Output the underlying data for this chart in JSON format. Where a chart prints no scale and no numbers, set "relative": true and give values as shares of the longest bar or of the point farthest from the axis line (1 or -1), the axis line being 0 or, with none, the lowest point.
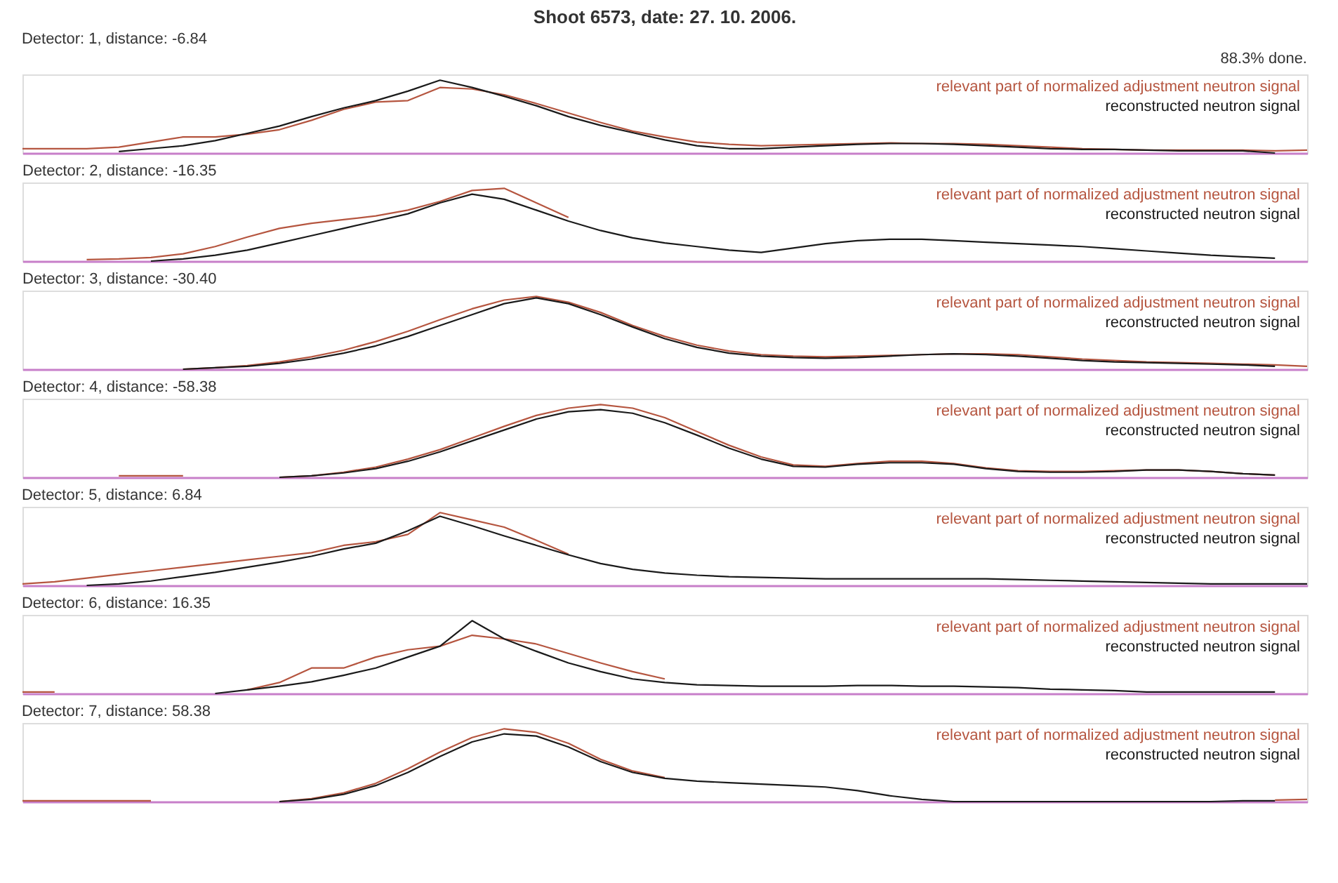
{
  "chart_data": [
    {
      "type": "line",
      "title": "Shoot 6573, date: 27. 10. 2006.",
      "subtitle": "Detector:  1, distance:  -6.84",
      "annotations": [
        "88.3% done."
      ],
      "relative": true,
      "legend": "top right",
      "grid": false,
      "categories": [
        null,
        null,
        null,
        null,
        null,
        null,
        null,
        null,
        null,
        null,
        null,
        null,
        null,
        null,
        null,
        null,
        null,
        null,
        null,
        null,
        null,
        null,
        null,
        null,
        null,
        null,
        null,
        null,
        null,
        null,
        null,
        null,
        null,
        null,
        null,
        null,
        null,
        null,
        null,
        null,
        null
      ],
      "series": [
        {
          "name": "relevant part of normalized adjustment neutron signal",
          "color": "#b5553f",
          "values": [
            0.06,
            0.06,
            0.06,
            0.08,
            0.15,
            0.22,
            0.22,
            0.26,
            0.32,
            0.45,
            0.6,
            0.7,
            0.72,
            0.9,
            0.88,
            0.8,
            0.68,
            0.55,
            0.42,
            0.3,
            0.22,
            0.15,
            0.12,
            0.1,
            0.11,
            0.12,
            0.13,
            0.14,
            0.13,
            0.13,
            0.12,
            0.1,
            0.08,
            0.06,
            0.05,
            0.04,
            0.04,
            0.04,
            0.04,
            0.03,
            0.04
          ]
        },
        {
          "name": "reconstructed neutron signal",
          "color": "#1a1a1a",
          "values": [
            null,
            null,
            null,
            0.02,
            0.06,
            0.1,
            0.17,
            0.27,
            0.37,
            0.5,
            0.62,
            0.72,
            0.85,
            1.0,
            0.9,
            0.78,
            0.65,
            0.5,
            0.38,
            0.28,
            0.18,
            0.1,
            0.06,
            0.06,
            0.08,
            0.1,
            0.12,
            0.13,
            0.13,
            0.12,
            0.1,
            0.08,
            0.06,
            0.05,
            0.05,
            0.04,
            0.03,
            0.03,
            0.03,
            0.0,
            null
          ]
        }
      ]
    },
    {
      "type": "line",
      "title": "Detector:  2, distance: -16.35",
      "relative": true,
      "legend": "top right",
      "grid": false,
      "categories": [
        null,
        null,
        null,
        null,
        null,
        null,
        null,
        null,
        null,
        null,
        null,
        null,
        null,
        null,
        null,
        null,
        null,
        null,
        null,
        null,
        null,
        null,
        null,
        null,
        null,
        null,
        null,
        null,
        null,
        null,
        null,
        null,
        null,
        null,
        null,
        null,
        null,
        null,
        null,
        null,
        null
      ],
      "series": [
        {
          "name": "relevant part of normalized adjustment neutron signal",
          "color": "#b5553f",
          "values": [
            null,
            null,
            0.02,
            0.03,
            0.05,
            0.1,
            0.2,
            0.33,
            0.45,
            0.52,
            0.57,
            0.62,
            0.7,
            0.82,
            0.97,
            1.0,
            0.8,
            0.6,
            null,
            null,
            null,
            null,
            null,
            null,
            null,
            null,
            null,
            null,
            null,
            null,
            null,
            null,
            null,
            null,
            null,
            null,
            null,
            null,
            null,
            null,
            null
          ]
        },
        {
          "name": "reconstructed neutron signal",
          "color": "#1a1a1a",
          "values": [
            null,
            null,
            null,
            null,
            0.0,
            0.03,
            0.08,
            0.15,
            0.25,
            0.35,
            0.45,
            0.55,
            0.65,
            0.8,
            0.92,
            0.85,
            0.7,
            0.55,
            0.42,
            0.32,
            0.25,
            0.2,
            0.15,
            0.12,
            0.18,
            0.24,
            0.28,
            0.3,
            0.3,
            0.28,
            0.26,
            0.24,
            0.22,
            0.2,
            0.17,
            0.14,
            0.11,
            0.08,
            0.06,
            0.04,
            null
          ]
        }
      ]
    },
    {
      "type": "line",
      "title": "Detector:  3, distance: -30.40",
      "relative": true,
      "legend": "top right",
      "grid": false,
      "categories": [
        null,
        null,
        null,
        null,
        null,
        null,
        null,
        null,
        null,
        null,
        null,
        null,
        null,
        null,
        null,
        null,
        null,
        null,
        null,
        null,
        null,
        null,
        null,
        null,
        null,
        null,
        null,
        null,
        null,
        null,
        null,
        null,
        null,
        null,
        null,
        null,
        null,
        null,
        null,
        null,
        null
      ],
      "series": [
        {
          "name": "relevant part of normalized adjustment neutron signal",
          "color": "#b5553f",
          "values": [
            null,
            null,
            null,
            null,
            null,
            0.0,
            0.02,
            0.05,
            0.1,
            0.17,
            0.26,
            0.38,
            0.52,
            0.68,
            0.83,
            0.95,
            1.0,
            0.92,
            0.78,
            0.6,
            0.45,
            0.33,
            0.25,
            0.2,
            0.18,
            0.17,
            0.18,
            0.19,
            0.2,
            0.21,
            0.21,
            0.2,
            0.17,
            0.14,
            0.12,
            0.1,
            0.09,
            0.08,
            0.07,
            0.06,
            0.04
          ]
        },
        {
          "name": "reconstructed neutron signal",
          "color": "#1a1a1a",
          "values": [
            null,
            null,
            null,
            null,
            null,
            0.0,
            0.02,
            0.04,
            0.08,
            0.14,
            0.22,
            0.32,
            0.45,
            0.6,
            0.75,
            0.9,
            0.98,
            0.9,
            0.75,
            0.58,
            0.42,
            0.3,
            0.22,
            0.18,
            0.16,
            0.15,
            0.16,
            0.18,
            0.2,
            0.21,
            0.2,
            0.18,
            0.15,
            0.12,
            0.1,
            0.09,
            0.08,
            0.07,
            0.06,
            0.04,
            null
          ]
        }
      ]
    },
    {
      "type": "line",
      "title": "Detector:  4, distance: -58.38",
      "relative": true,
      "legend": "top right",
      "grid": false,
      "categories": [
        null,
        null,
        null,
        null,
        null,
        null,
        null,
        null,
        null,
        null,
        null,
        null,
        null,
        null,
        null,
        null,
        null,
        null,
        null,
        null,
        null,
        null,
        null,
        null,
        null,
        null,
        null,
        null,
        null,
        null,
        null,
        null,
        null,
        null,
        null,
        null,
        null,
        null,
        null,
        null,
        null
      ],
      "series": [
        {
          "name": "relevant part of normalized adjustment neutron signal",
          "color": "#b5553f",
          "values": [
            null,
            null,
            null,
            0.02,
            0.02,
            0.02,
            null,
            null,
            0.0,
            0.02,
            0.07,
            0.14,
            0.25,
            0.38,
            0.54,
            0.7,
            0.85,
            0.95,
            1.0,
            0.95,
            0.82,
            0.63,
            0.44,
            0.28,
            0.17,
            0.15,
            0.19,
            0.22,
            0.22,
            0.19,
            0.13,
            0.09,
            0.08,
            0.08,
            0.09,
            0.1,
            0.1,
            0.08,
            0.05,
            0.03,
            null
          ]
        },
        {
          "name": "reconstructed neutron signal",
          "color": "#1a1a1a",
          "values": [
            null,
            null,
            null,
            null,
            null,
            null,
            null,
            null,
            0.0,
            0.02,
            0.06,
            0.12,
            0.22,
            0.35,
            0.5,
            0.65,
            0.8,
            0.9,
            0.93,
            0.88,
            0.75,
            0.58,
            0.4,
            0.25,
            0.15,
            0.14,
            0.18,
            0.2,
            0.2,
            0.18,
            0.12,
            0.08,
            0.07,
            0.07,
            0.08,
            0.1,
            0.1,
            0.08,
            0.05,
            0.03,
            null
          ]
        }
      ]
    },
    {
      "type": "line",
      "title": "Detector:  5, distance:  6.84",
      "relative": true,
      "legend": "top right",
      "grid": false,
      "categories": [
        null,
        null,
        null,
        null,
        null,
        null,
        null,
        null,
        null,
        null,
        null,
        null,
        null,
        null,
        null,
        null,
        null,
        null,
        null,
        null,
        null,
        null,
        null,
        null,
        null,
        null,
        null,
        null,
        null,
        null,
        null,
        null,
        null,
        null,
        null,
        null,
        null,
        null,
        null,
        null,
        null
      ],
      "series": [
        {
          "name": "relevant part of normalized adjustment neutron signal",
          "color": "#b5553f",
          "values": [
            0.02,
            0.05,
            0.1,
            0.15,
            0.2,
            0.25,
            0.3,
            0.35,
            0.4,
            0.45,
            0.55,
            0.6,
            0.7,
            1.0,
            0.9,
            0.8,
            0.62,
            0.43,
            null,
            null,
            null,
            null,
            null,
            null,
            null,
            null,
            null,
            null,
            null,
            null,
            null,
            null,
            null,
            null,
            null,
            null,
            null,
            null,
            null,
            null,
            null
          ]
        },
        {
          "name": "reconstructed neutron signal",
          "color": "#1a1a1a",
          "values": [
            null,
            null,
            0.0,
            0.02,
            0.06,
            0.12,
            0.18,
            0.25,
            0.32,
            0.4,
            0.5,
            0.58,
            0.75,
            0.95,
            0.82,
            0.68,
            0.55,
            0.42,
            0.3,
            0.22,
            0.17,
            0.14,
            0.12,
            0.11,
            0.1,
            0.09,
            0.09,
            0.09,
            0.09,
            0.09,
            0.09,
            0.08,
            0.07,
            0.06,
            0.05,
            0.04,
            0.03,
            0.02,
            0.02,
            0.02,
            0.02
          ]
        }
      ]
    },
    {
      "type": "line",
      "title": "Detector:  6, distance:  16.35",
      "relative": true,
      "legend": "top right",
      "grid": false,
      "categories": [
        null,
        null,
        null,
        null,
        null,
        null,
        null,
        null,
        null,
        null,
        null,
        null,
        null,
        null,
        null,
        null,
        null,
        null,
        null,
        null,
        null,
        null,
        null,
        null,
        null,
        null,
        null,
        null,
        null,
        null,
        null,
        null,
        null,
        null,
        null,
        null,
        null,
        null,
        null,
        null,
        null
      ],
      "series": [
        {
          "name": "relevant part of normalized adjustment neutron signal",
          "color": "#b5553f",
          "values": [
            0.02,
            0.02,
            null,
            null,
            null,
            null,
            null,
            0.05,
            0.15,
            0.35,
            0.35,
            0.5,
            0.6,
            0.65,
            0.8,
            0.75,
            0.68,
            0.55,
            0.42,
            0.3,
            0.2,
            null,
            null,
            null,
            null,
            null,
            null,
            null,
            null,
            null,
            null,
            null,
            null,
            null,
            null,
            null,
            null,
            null,
            null,
            null,
            null
          ]
        },
        {
          "name": "reconstructed neutron signal",
          "color": "#1a1a1a",
          "values": [
            null,
            null,
            null,
            null,
            null,
            null,
            0.0,
            0.05,
            0.1,
            0.16,
            0.25,
            0.35,
            0.5,
            0.65,
            1.0,
            0.75,
            0.58,
            0.42,
            0.3,
            0.2,
            0.15,
            0.12,
            0.11,
            0.1,
            0.1,
            0.1,
            0.11,
            0.11,
            0.1,
            0.1,
            0.09,
            0.08,
            0.06,
            0.05,
            0.04,
            0.02,
            0.02,
            0.02,
            0.02,
            0.02,
            null
          ]
        }
      ]
    },
    {
      "type": "line",
      "title": "Detector:  7, distance:  58.38",
      "relative": true,
      "legend": "top right",
      "grid": false,
      "categories": [
        null,
        null,
        null,
        null,
        null,
        null,
        null,
        null,
        null,
        null,
        null,
        null,
        null,
        null,
        null,
        null,
        null,
        null,
        null,
        null,
        null,
        null,
        null,
        null,
        null,
        null,
        null,
        null,
        null,
        null,
        null,
        null,
        null,
        null,
        null,
        null,
        null,
        null,
        null,
        null,
        null
      ],
      "series": [
        {
          "name": "relevant part of normalized adjustment neutron signal",
          "color": "#b5553f",
          "values": [
            0.01,
            0.01,
            0.01,
            0.01,
            0.01,
            null,
            null,
            null,
            0.0,
            0.04,
            0.12,
            0.25,
            0.45,
            0.68,
            0.88,
            1.0,
            0.95,
            0.8,
            0.58,
            0.42,
            0.33,
            null,
            null,
            null,
            null,
            null,
            null,
            null,
            null,
            null,
            null,
            null,
            null,
            null,
            null,
            null,
            null,
            null,
            null,
            0.02,
            0.03
          ]
        },
        {
          "name": "reconstructed neutron signal",
          "color": "#1a1a1a",
          "values": [
            null,
            null,
            null,
            null,
            null,
            null,
            null,
            null,
            0.0,
            0.03,
            0.1,
            0.22,
            0.4,
            0.62,
            0.82,
            0.93,
            0.9,
            0.75,
            0.55,
            0.4,
            0.32,
            0.28,
            0.26,
            0.24,
            0.22,
            0.2,
            0.15,
            0.08,
            0.03,
            0.0,
            0.0,
            0.0,
            0.0,
            0.0,
            0.0,
            0.0,
            0.0,
            0.0,
            0.01,
            0.01,
            null
          ]
        }
      ]
    }
  ]
}
